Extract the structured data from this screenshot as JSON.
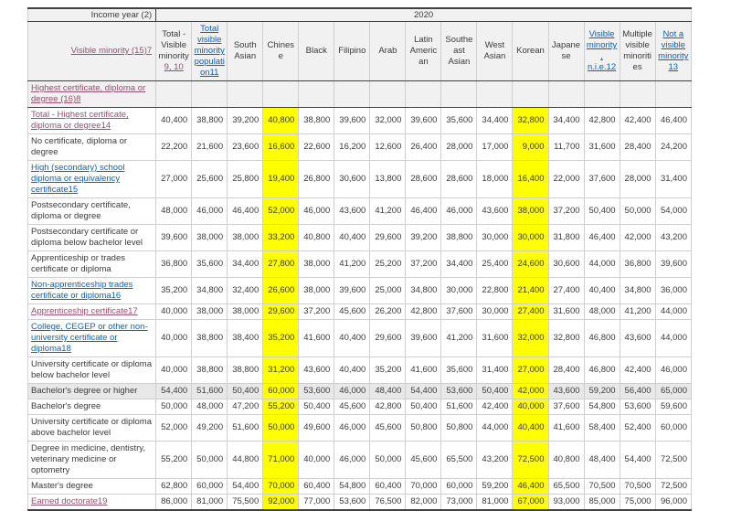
{
  "colors": {
    "highlight_yellow": "#ffff00",
    "link_blue": "#0563c1",
    "link_purple": "#954f72",
    "header_gray": "#f1f1f1",
    "shaded_row_gray": "#e8e8e8"
  },
  "table": {
    "corner_label": "Income year (2)",
    "year_label": "2020",
    "stub_header": {
      "label": "Visible minority (15)7",
      "link": "purple"
    },
    "columns": [
      {
        "label": "Total - Visible minority",
        "note": "9, 10",
        "link": "none",
        "highlight": false
      },
      {
        "label": "Total visible minority population11",
        "link": "blue",
        "highlight": false
      },
      {
        "label": "South Asian",
        "link": "none",
        "highlight": false
      },
      {
        "label": "Chinese",
        "link": "none",
        "highlight": true
      },
      {
        "label": "Black",
        "link": "none",
        "highlight": false
      },
      {
        "label": "Filipino",
        "link": "none",
        "highlight": false
      },
      {
        "label": "Arab",
        "link": "none",
        "highlight": false
      },
      {
        "label": "Latin American",
        "link": "none",
        "highlight": false
      },
      {
        "label": "Southeast Asian",
        "link": "none",
        "highlight": false
      },
      {
        "label": "West Asian",
        "link": "none",
        "highlight": false
      },
      {
        "label": "Korean",
        "link": "none",
        "highlight": true
      },
      {
        "label": "Japanese",
        "link": "none",
        "highlight": false
      },
      {
        "label": "Visible minority, n.i.e.12",
        "link": "blue",
        "highlight": false
      },
      {
        "label": "Multiple visible minorities",
        "link": "none",
        "highlight": false
      },
      {
        "label": "Not a visible minority 13",
        "link": "blue",
        "highlight": false
      }
    ],
    "section_row": {
      "label": "Highest certificate, diploma or degree (16)8",
      "link": "purple"
    },
    "rows": [
      {
        "label": "Total - Highest certificate, diploma or degree14",
        "link": "purple",
        "shaded": false,
        "values": [
          "40,400",
          "38,800",
          "39,200",
          "40,800",
          "38,800",
          "39,600",
          "32,000",
          "39,600",
          "35,600",
          "34,400",
          "32,800",
          "34,400",
          "42,800",
          "42,400",
          "46,400"
        ]
      },
      {
        "label": "No certificate, diploma or degree",
        "link": "none",
        "shaded": false,
        "values": [
          "22,200",
          "21,600",
          "23,600",
          "16,600",
          "22,600",
          "16,200",
          "12,600",
          "26,400",
          "28,000",
          "17,000",
          "9,000",
          "11,700",
          "31,600",
          "28,400",
          "24,200"
        ]
      },
      {
        "label": "High (secondary) school diploma or equivalency certificate15",
        "link": "blue",
        "shaded": false,
        "values": [
          "27,000",
          "25,600",
          "25,800",
          "19,400",
          "26,800",
          "30,600",
          "13,800",
          "28,600",
          "28,600",
          "18,000",
          "16,400",
          "22,000",
          "37,600",
          "28,000",
          "31,400"
        ]
      },
      {
        "label": "Postsecondary certificate, diploma or degree",
        "link": "none",
        "shaded": false,
        "values": [
          "48,000",
          "46,000",
          "46,400",
          "52,000",
          "46,000",
          "43,600",
          "41,200",
          "46,400",
          "46,000",
          "43,600",
          "38,000",
          "37,200",
          "50,400",
          "50,000",
          "54,000"
        ]
      },
      {
        "label": "Postsecondary certificate or diploma below bachelor level",
        "link": "none",
        "shaded": false,
        "values": [
          "39,600",
          "38,000",
          "38,000",
          "33,200",
          "40,800",
          "40,400",
          "29,600",
          "39,200",
          "38,800",
          "30,000",
          "30,000",
          "31,800",
          "46,400",
          "42,000",
          "43,200"
        ]
      },
      {
        "label": "Apprenticeship or trades certificate or diploma",
        "link": "none",
        "shaded": false,
        "values": [
          "36,800",
          "35,600",
          "34,400",
          "27,800",
          "38,000",
          "41,200",
          "25,200",
          "37,200",
          "34,400",
          "25,400",
          "24,600",
          "30,600",
          "44,000",
          "36,800",
          "39,600"
        ]
      },
      {
        "label": "Non-apprenticeship trades certificate or diploma16",
        "link": "blue",
        "shaded": false,
        "values": [
          "35,200",
          "34,800",
          "32,400",
          "26,600",
          "38,000",
          "39,600",
          "25,000",
          "34,800",
          "30,000",
          "22,800",
          "21,400",
          "27,400",
          "40,400",
          "34,800",
          "36,000"
        ]
      },
      {
        "label": "Apprenticeship certificate17",
        "link": "purple",
        "shaded": false,
        "values": [
          "40,000",
          "38,000",
          "38,000",
          "29,600",
          "37,200",
          "45,600",
          "26,200",
          "42,800",
          "37,600",
          "30,000",
          "27,400",
          "31,600",
          "48,000",
          "41,200",
          "44,000"
        ]
      },
      {
        "label": "College, CEGEP or other non-university certificate or diploma18",
        "link": "blue",
        "shaded": false,
        "values": [
          "40,000",
          "38,800",
          "38,400",
          "35,200",
          "41,600",
          "40,400",
          "29,600",
          "39,600",
          "41,200",
          "31,600",
          "32,000",
          "32,800",
          "46,800",
          "43,600",
          "44,000"
        ]
      },
      {
        "label": "University certificate or diploma below bachelor level",
        "link": "none",
        "shaded": false,
        "values": [
          "40,000",
          "38,800",
          "38,800",
          "31,200",
          "43,600",
          "40,400",
          "35,200",
          "41,600",
          "35,600",
          "31,400",
          "27,000",
          "28,400",
          "46,800",
          "42,400",
          "46,000"
        ]
      },
      {
        "label": "Bachelor's degree or higher",
        "link": "none",
        "shaded": true,
        "values": [
          "54,400",
          "51,600",
          "50,400",
          "60,000",
          "53,600",
          "46,000",
          "48,400",
          "54,400",
          "53,600",
          "50,400",
          "42,000",
          "43,600",
          "59,200",
          "56,400",
          "65,000"
        ]
      },
      {
        "label": "Bachelor's degree",
        "link": "none",
        "shaded": false,
        "values": [
          "50,000",
          "48,000",
          "47,200",
          "55,200",
          "50,400",
          "45,600",
          "42,800",
          "50,400",
          "51,600",
          "42,400",
          "40,000",
          "37,600",
          "54,800",
          "53,600",
          "59,600"
        ]
      },
      {
        "label": "University certificate or diploma above bachelor level",
        "link": "none",
        "shaded": false,
        "values": [
          "52,000",
          "49,200",
          "51,600",
          "50,000",
          "49,600",
          "46,000",
          "45,600",
          "50,800",
          "50,800",
          "44,000",
          "40,400",
          "41,600",
          "58,400",
          "52,400",
          "60,000"
        ]
      },
      {
        "label": "Degree in medicine, dentistry, veterinary medicine or optometry",
        "link": "none",
        "shaded": false,
        "values": [
          "55,200",
          "50,000",
          "44,800",
          "71,000",
          "40,000",
          "46,000",
          "50,000",
          "45,600",
          "65,500",
          "43,200",
          "72,500",
          "40,800",
          "48,400",
          "54,400",
          "72,500"
        ]
      },
      {
        "label": "Master's degree",
        "link": "none",
        "shaded": false,
        "values": [
          "62,800",
          "60,000",
          "54,400",
          "70,000",
          "60,400",
          "54,800",
          "60,400",
          "70,000",
          "60,000",
          "59,200",
          "46,400",
          "65,500",
          "70,500",
          "70,500",
          "72,500"
        ]
      },
      {
        "label": "Earned doctorate19",
        "link": "purple",
        "shaded": false,
        "values": [
          "86,000",
          "81,000",
          "75,500",
          "92,000",
          "77,000",
          "53,600",
          "76,500",
          "82,000",
          "73,000",
          "81,000",
          "67,000",
          "93,000",
          "85,000",
          "75,000",
          "96,000"
        ]
      }
    ]
  }
}
